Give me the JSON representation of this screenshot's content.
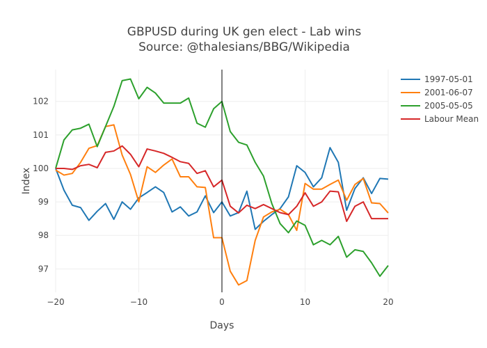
{
  "chart_data": {
    "type": "line",
    "title": "GBPUSD during UK gen elect - Lab wins",
    "subtitle": "Source: @thalesians/BBG/Wikipedia",
    "xlabel": "Days",
    "ylabel": "Index",
    "xlim": [
      -20,
      20
    ],
    "ylim": [
      96.3,
      102.95
    ],
    "xticks": [
      -20,
      -10,
      0,
      10,
      20
    ],
    "xtick_labels": [
      "−20",
      "−10",
      "0",
      "10",
      "20"
    ],
    "yticks": [
      97,
      98,
      99,
      100,
      101,
      102
    ],
    "grid": true,
    "vertical_line_x": 0,
    "legend_position": "right",
    "x": [
      -20,
      -19,
      -18,
      -17,
      -16,
      -15,
      -14,
      -13,
      -12,
      -11,
      -10,
      -9,
      -8,
      -7,
      -6,
      -5,
      -4,
      -3,
      -2,
      -1,
      0,
      1,
      2,
      3,
      4,
      5,
      6,
      7,
      8,
      9,
      10,
      11,
      12,
      13,
      14,
      15,
      16,
      17,
      18,
      19,
      20
    ],
    "series": [
      {
        "name": "1997-05-01",
        "color": "#1f77b4",
        "values": [
          100.0,
          99.35,
          98.9,
          98.83,
          98.45,
          98.72,
          98.95,
          98.48,
          99.0,
          98.78,
          99.12,
          99.28,
          99.45,
          99.28,
          98.7,
          98.85,
          98.58,
          98.7,
          99.18,
          98.68,
          99.0,
          98.58,
          98.68,
          99.32,
          98.18,
          98.42,
          98.62,
          98.8,
          99.15,
          100.08,
          99.88,
          99.45,
          99.72,
          100.62,
          100.18,
          98.75,
          99.4,
          99.72,
          99.25,
          99.7,
          99.68
        ]
      },
      {
        "name": "2001-06-07",
        "color": "#ff7f0e",
        "values": [
          99.95,
          99.8,
          99.85,
          100.18,
          100.6,
          100.68,
          101.25,
          101.3,
          100.4,
          99.82,
          99.0,
          100.05,
          99.88,
          100.1,
          100.28,
          99.75,
          99.75,
          99.45,
          99.43,
          97.93,
          97.93,
          96.93,
          96.52,
          96.65,
          97.85,
          98.55,
          98.7,
          98.78,
          98.62,
          98.15,
          99.55,
          99.38,
          99.38,
          99.52,
          99.65,
          99.05,
          99.52,
          99.7,
          98.97,
          98.95,
          98.67
        ]
      },
      {
        "name": "2005-05-05",
        "color": "#2ca02c",
        "values": [
          100.0,
          100.85,
          101.15,
          101.2,
          101.32,
          100.65,
          101.25,
          101.85,
          102.62,
          102.67,
          102.08,
          102.42,
          102.25,
          101.95,
          101.95,
          101.95,
          102.1,
          101.35,
          101.23,
          101.78,
          102.0,
          101.1,
          100.78,
          100.7,
          100.18,
          99.77,
          98.95,
          98.35,
          98.08,
          98.43,
          98.3,
          97.72,
          97.85,
          97.72,
          97.97,
          97.35,
          97.57,
          97.52,
          97.18,
          96.78,
          97.1
        ]
      },
      {
        "name": "Labour Mean",
        "color": "#d62728",
        "values": [
          100.0,
          100.0,
          99.97,
          100.08,
          100.12,
          100.02,
          100.48,
          100.52,
          100.67,
          100.42,
          100.05,
          100.58,
          100.52,
          100.45,
          100.33,
          100.2,
          100.15,
          99.85,
          99.93,
          99.45,
          99.65,
          98.87,
          98.67,
          98.9,
          98.8,
          98.92,
          98.8,
          98.68,
          98.62,
          98.87,
          99.27,
          98.87,
          99.0,
          99.32,
          99.3,
          98.42,
          98.87,
          99.0,
          98.5,
          98.5,
          98.5
        ]
      }
    ]
  }
}
